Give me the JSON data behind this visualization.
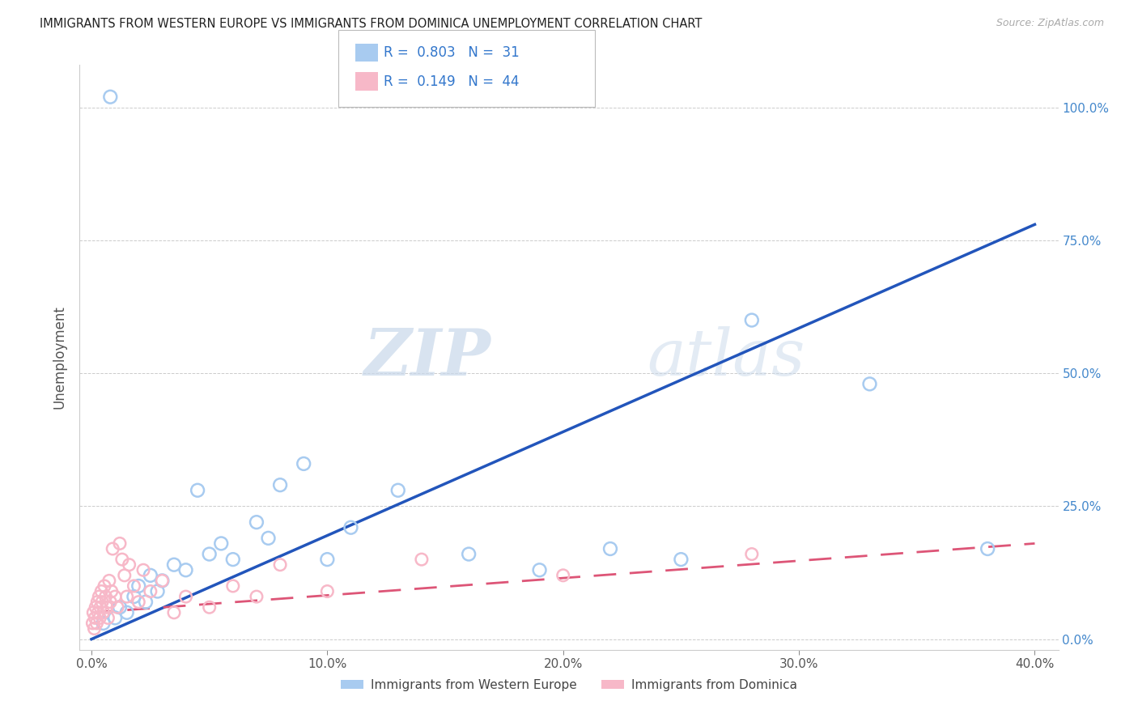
{
  "title": "IMMIGRANTS FROM WESTERN EUROPE VS IMMIGRANTS FROM DOMINICA UNEMPLOYMENT CORRELATION CHART",
  "source": "Source: ZipAtlas.com",
  "ylabel": "Unemployment",
  "x_tick_labels": [
    "0.0%",
    "10.0%",
    "20.0%",
    "30.0%",
    "40.0%"
  ],
  "x_tick_values": [
    0,
    10,
    20,
    30,
    40
  ],
  "y_tick_labels": [
    "0.0%",
    "25.0%",
    "50.0%",
    "75.0%",
    "100.0%"
  ],
  "y_tick_values": [
    0,
    25,
    50,
    75,
    100
  ],
  "xlim": [
    -0.5,
    41
  ],
  "ylim": [
    -2,
    108
  ],
  "blue_label": "Immigrants from Western Europe",
  "pink_label": "Immigrants from Dominica",
  "blue_R": "0.803",
  "blue_N": "31",
  "pink_R": "0.149",
  "pink_N": "44",
  "blue_color": "#A8CBF0",
  "pink_color": "#F7B8C8",
  "blue_trend_color": "#2255BB",
  "pink_trend_color": "#DD5577",
  "watermark_zip": "ZIP",
  "watermark_atlas": "atlas",
  "blue_scatter_x": [
    0.5,
    0.8,
    1.0,
    1.2,
    1.5,
    1.8,
    2.0,
    2.3,
    2.5,
    2.8,
    3.0,
    3.5,
    4.0,
    4.5,
    5.0,
    5.5,
    6.0,
    7.0,
    7.5,
    8.0,
    9.0,
    10.0,
    11.0,
    13.0,
    16.0,
    19.0,
    22.0,
    25.0,
    28.0,
    33.0,
    38.0
  ],
  "blue_scatter_y": [
    3,
    102,
    4,
    6,
    5,
    8,
    10,
    7,
    12,
    9,
    11,
    14,
    13,
    28,
    16,
    18,
    15,
    22,
    19,
    29,
    33,
    15,
    21,
    28,
    16,
    13,
    17,
    15,
    60,
    48,
    17
  ],
  "pink_scatter_x": [
    0.05,
    0.08,
    0.12,
    0.15,
    0.18,
    0.22,
    0.25,
    0.28,
    0.32,
    0.35,
    0.38,
    0.42,
    0.45,
    0.5,
    0.55,
    0.6,
    0.65,
    0.7,
    0.75,
    0.8,
    0.85,
    0.9,
    1.0,
    1.1,
    1.2,
    1.3,
    1.4,
    1.5,
    1.6,
    1.8,
    2.0,
    2.2,
    2.5,
    3.0,
    3.5,
    4.0,
    5.0,
    6.0,
    7.0,
    8.0,
    10.0,
    14.0,
    20.0,
    28.0
  ],
  "pink_scatter_y": [
    3,
    5,
    2,
    4,
    6,
    3,
    7,
    5,
    8,
    4,
    6,
    9,
    7,
    5,
    10,
    8,
    6,
    4,
    11,
    7,
    9,
    17,
    8,
    6,
    18,
    15,
    12,
    8,
    14,
    10,
    7,
    13,
    9,
    11,
    5,
    8,
    6,
    10,
    8,
    14,
    9,
    15,
    12,
    16
  ],
  "blue_trend_x0": 0,
  "blue_trend_y0": 0,
  "blue_trend_x1": 40,
  "blue_trend_y1": 78,
  "pink_trend_x0": 0,
  "pink_trend_y0": 5,
  "pink_trend_x1": 40,
  "pink_trend_y1": 18,
  "bg_color": "#FFFFFF",
  "grid_color": "#CCCCCC"
}
